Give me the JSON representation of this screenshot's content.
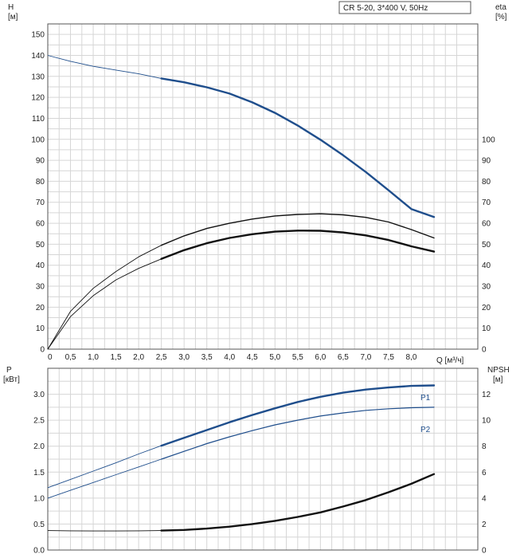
{
  "colors": {
    "blue": "#1f4e8c",
    "black": "#111111",
    "grid": "#d6d6d6",
    "frame": "#555555"
  },
  "legend_box": {
    "text": "CR 5-20, 3*400 V, 50Hz"
  },
  "chart_data": [
    {
      "type": "line",
      "name_panel": "head-efficiency",
      "y_left_label": [
        "H",
        "[м]"
      ],
      "y_right_label": [
        "eta",
        "[%]"
      ],
      "x_label": "Q [м³/ч]",
      "x_ticks": [
        "0",
        "0,5",
        "1,0",
        "1,5",
        "2,0",
        "2,5",
        "3,0",
        "3,5",
        "4,0",
        "4,5",
        "5,0",
        "5,5",
        "6,0",
        "6,5",
        "7,0",
        "7,5",
        "8,0"
      ],
      "x_range": [
        0,
        8.5
      ],
      "y_left_range": [
        0,
        150
      ],
      "y_left_ticks": [
        "0",
        "10",
        "20",
        "30",
        "40",
        "50",
        "60",
        "70",
        "80",
        "90",
        "100",
        "110",
        "120",
        "130",
        "140",
        "150"
      ],
      "y_right_ticks": [
        "0",
        "10",
        "20",
        "30",
        "40",
        "50",
        "60",
        "70",
        "80",
        "90",
        "100"
      ],
      "grid": true,
      "series": [
        {
          "key": "head",
          "color": "#1f4e8c",
          "thin": [
            [
              0,
              140
            ],
            [
              0.5,
              137.2
            ],
            [
              1.0,
              134.8
            ],
            [
              1.5,
              133
            ],
            [
              2.0,
              131.2
            ],
            [
              2.5,
              129
            ]
          ],
          "thick": [
            [
              2.5,
              129
            ],
            [
              3.0,
              127.2
            ],
            [
              3.5,
              124.8
            ],
            [
              4.0,
              121.8
            ],
            [
              4.5,
              117.6
            ],
            [
              5.0,
              112.6
            ],
            [
              5.5,
              106.6
            ],
            [
              6.0,
              99.8
            ],
            [
              6.5,
              92.4
            ],
            [
              7.0,
              84.4
            ],
            [
              7.5,
              75.7
            ],
            [
              8.0,
              66.8
            ],
            [
              8.5,
              63
            ]
          ]
        },
        {
          "key": "eta-upper",
          "color": "#111111",
          "thin": [
            [
              0,
              0
            ],
            [
              0.5,
              18
            ],
            [
              1.0,
              29
            ],
            [
              1.5,
              37
            ],
            [
              2.0,
              44
            ],
            [
              2.5,
              49.5
            ]
          ],
          "thick": [
            [
              2.5,
              49.5
            ],
            [
              3.0,
              54
            ],
            [
              3.5,
              57.5
            ],
            [
              4.0,
              60
            ],
            [
              4.5,
              62
            ],
            [
              5.0,
              63.5
            ],
            [
              5.5,
              64.2
            ],
            [
              6.0,
              64.5
            ],
            [
              6.5,
              64
            ],
            [
              7.0,
              62.8
            ],
            [
              7.5,
              60.6
            ],
            [
              8.0,
              57
            ],
            [
              8.5,
              53
            ]
          ]
        },
        {
          "key": "eta-lower",
          "color": "#111111",
          "thin": [
            [
              0,
              0
            ],
            [
              0.5,
              15.5
            ],
            [
              1.0,
              25.5
            ],
            [
              1.5,
              33
            ],
            [
              2.0,
              38.5
            ],
            [
              2.5,
              43
            ]
          ],
          "thick": [
            [
              2.5,
              43
            ],
            [
              3.0,
              47.2
            ],
            [
              3.5,
              50.5
            ],
            [
              4.0,
              53
            ],
            [
              4.5,
              54.8
            ],
            [
              5.0,
              56
            ],
            [
              5.5,
              56.5
            ],
            [
              6.0,
              56.4
            ],
            [
              6.5,
              55.6
            ],
            [
              7.0,
              54.2
            ],
            [
              7.5,
              52
            ],
            [
              8.0,
              49
            ],
            [
              8.5,
              46.5
            ]
          ]
        }
      ]
    },
    {
      "type": "line",
      "name_panel": "power-npsh",
      "y_left_label": [
        "P",
        "[кВт]"
      ],
      "y_right_label": [
        "NPSH",
        "[м]"
      ],
      "x_range": [
        0,
        8.5
      ],
      "y_left_range": [
        0,
        3.5
      ],
      "y_left_ticks": [
        "0.0",
        "0.5",
        "1.0",
        "1.5",
        "2.0",
        "2.5",
        "3.0"
      ],
      "y_right_range": [
        0,
        14
      ],
      "y_right_ticks": [
        "0",
        "2",
        "4",
        "6",
        "8",
        "10",
        "12"
      ],
      "grid": true,
      "series": [
        {
          "key": "P1",
          "name": "P1",
          "axis": "left",
          "color": "#1f4e8c",
          "thin": [
            [
              0,
              1.2
            ],
            [
              0.5,
              1.36
            ],
            [
              1.0,
              1.52
            ],
            [
              1.5,
              1.68
            ],
            [
              2.0,
              1.85
            ],
            [
              2.5,
              2.01
            ]
          ],
          "thick": [
            [
              2.5,
              2.01
            ],
            [
              3.0,
              2.16
            ],
            [
              3.5,
              2.31
            ],
            [
              4.0,
              2.46
            ],
            [
              4.5,
              2.6
            ],
            [
              5.0,
              2.73
            ],
            [
              5.5,
              2.85
            ],
            [
              6.0,
              2.95
            ],
            [
              6.5,
              3.03
            ],
            [
              7.0,
              3.09
            ],
            [
              7.5,
              3.13
            ],
            [
              8.0,
              3.16
            ],
            [
              8.5,
              3.17
            ]
          ]
        },
        {
          "key": "P2",
          "name": "P2",
          "axis": "left",
          "color": "#1f4e8c",
          "thin": [
            [
              0,
              1.0
            ],
            [
              0.5,
              1.15
            ],
            [
              1.0,
              1.3
            ],
            [
              1.5,
              1.45
            ],
            [
              2.0,
              1.6
            ],
            [
              2.5,
              1.75
            ]
          ],
          "thick": [
            [
              2.5,
              1.75
            ],
            [
              3.0,
              1.9
            ],
            [
              3.5,
              2.05
            ],
            [
              4.0,
              2.18
            ],
            [
              4.5,
              2.3
            ],
            [
              5.0,
              2.41
            ],
            [
              5.5,
              2.5
            ],
            [
              6.0,
              2.58
            ],
            [
              6.5,
              2.64
            ],
            [
              7.0,
              2.69
            ],
            [
              7.5,
              2.72
            ],
            [
              8.0,
              2.74
            ],
            [
              8.5,
              2.75
            ]
          ]
        },
        {
          "key": "NPSH",
          "axis": "right",
          "color": "#111111",
          "thin": [
            [
              0,
              1.5
            ],
            [
              0.5,
              1.48
            ],
            [
              1.0,
              1.47
            ],
            [
              1.5,
              1.47
            ],
            [
              2.0,
              1.48
            ],
            [
              2.5,
              1.5
            ]
          ],
          "thick": [
            [
              2.5,
              1.5
            ],
            [
              3.0,
              1.55
            ],
            [
              3.5,
              1.65
            ],
            [
              4.0,
              1.8
            ],
            [
              4.5,
              2.0
            ],
            [
              5.0,
              2.25
            ],
            [
              5.5,
              2.55
            ],
            [
              6.0,
              2.9
            ],
            [
              6.5,
              3.35
            ],
            [
              7.0,
              3.85
            ],
            [
              7.5,
              4.45
            ],
            [
              8.0,
              5.1
            ],
            [
              8.5,
              5.85
            ]
          ]
        }
      ]
    }
  ]
}
